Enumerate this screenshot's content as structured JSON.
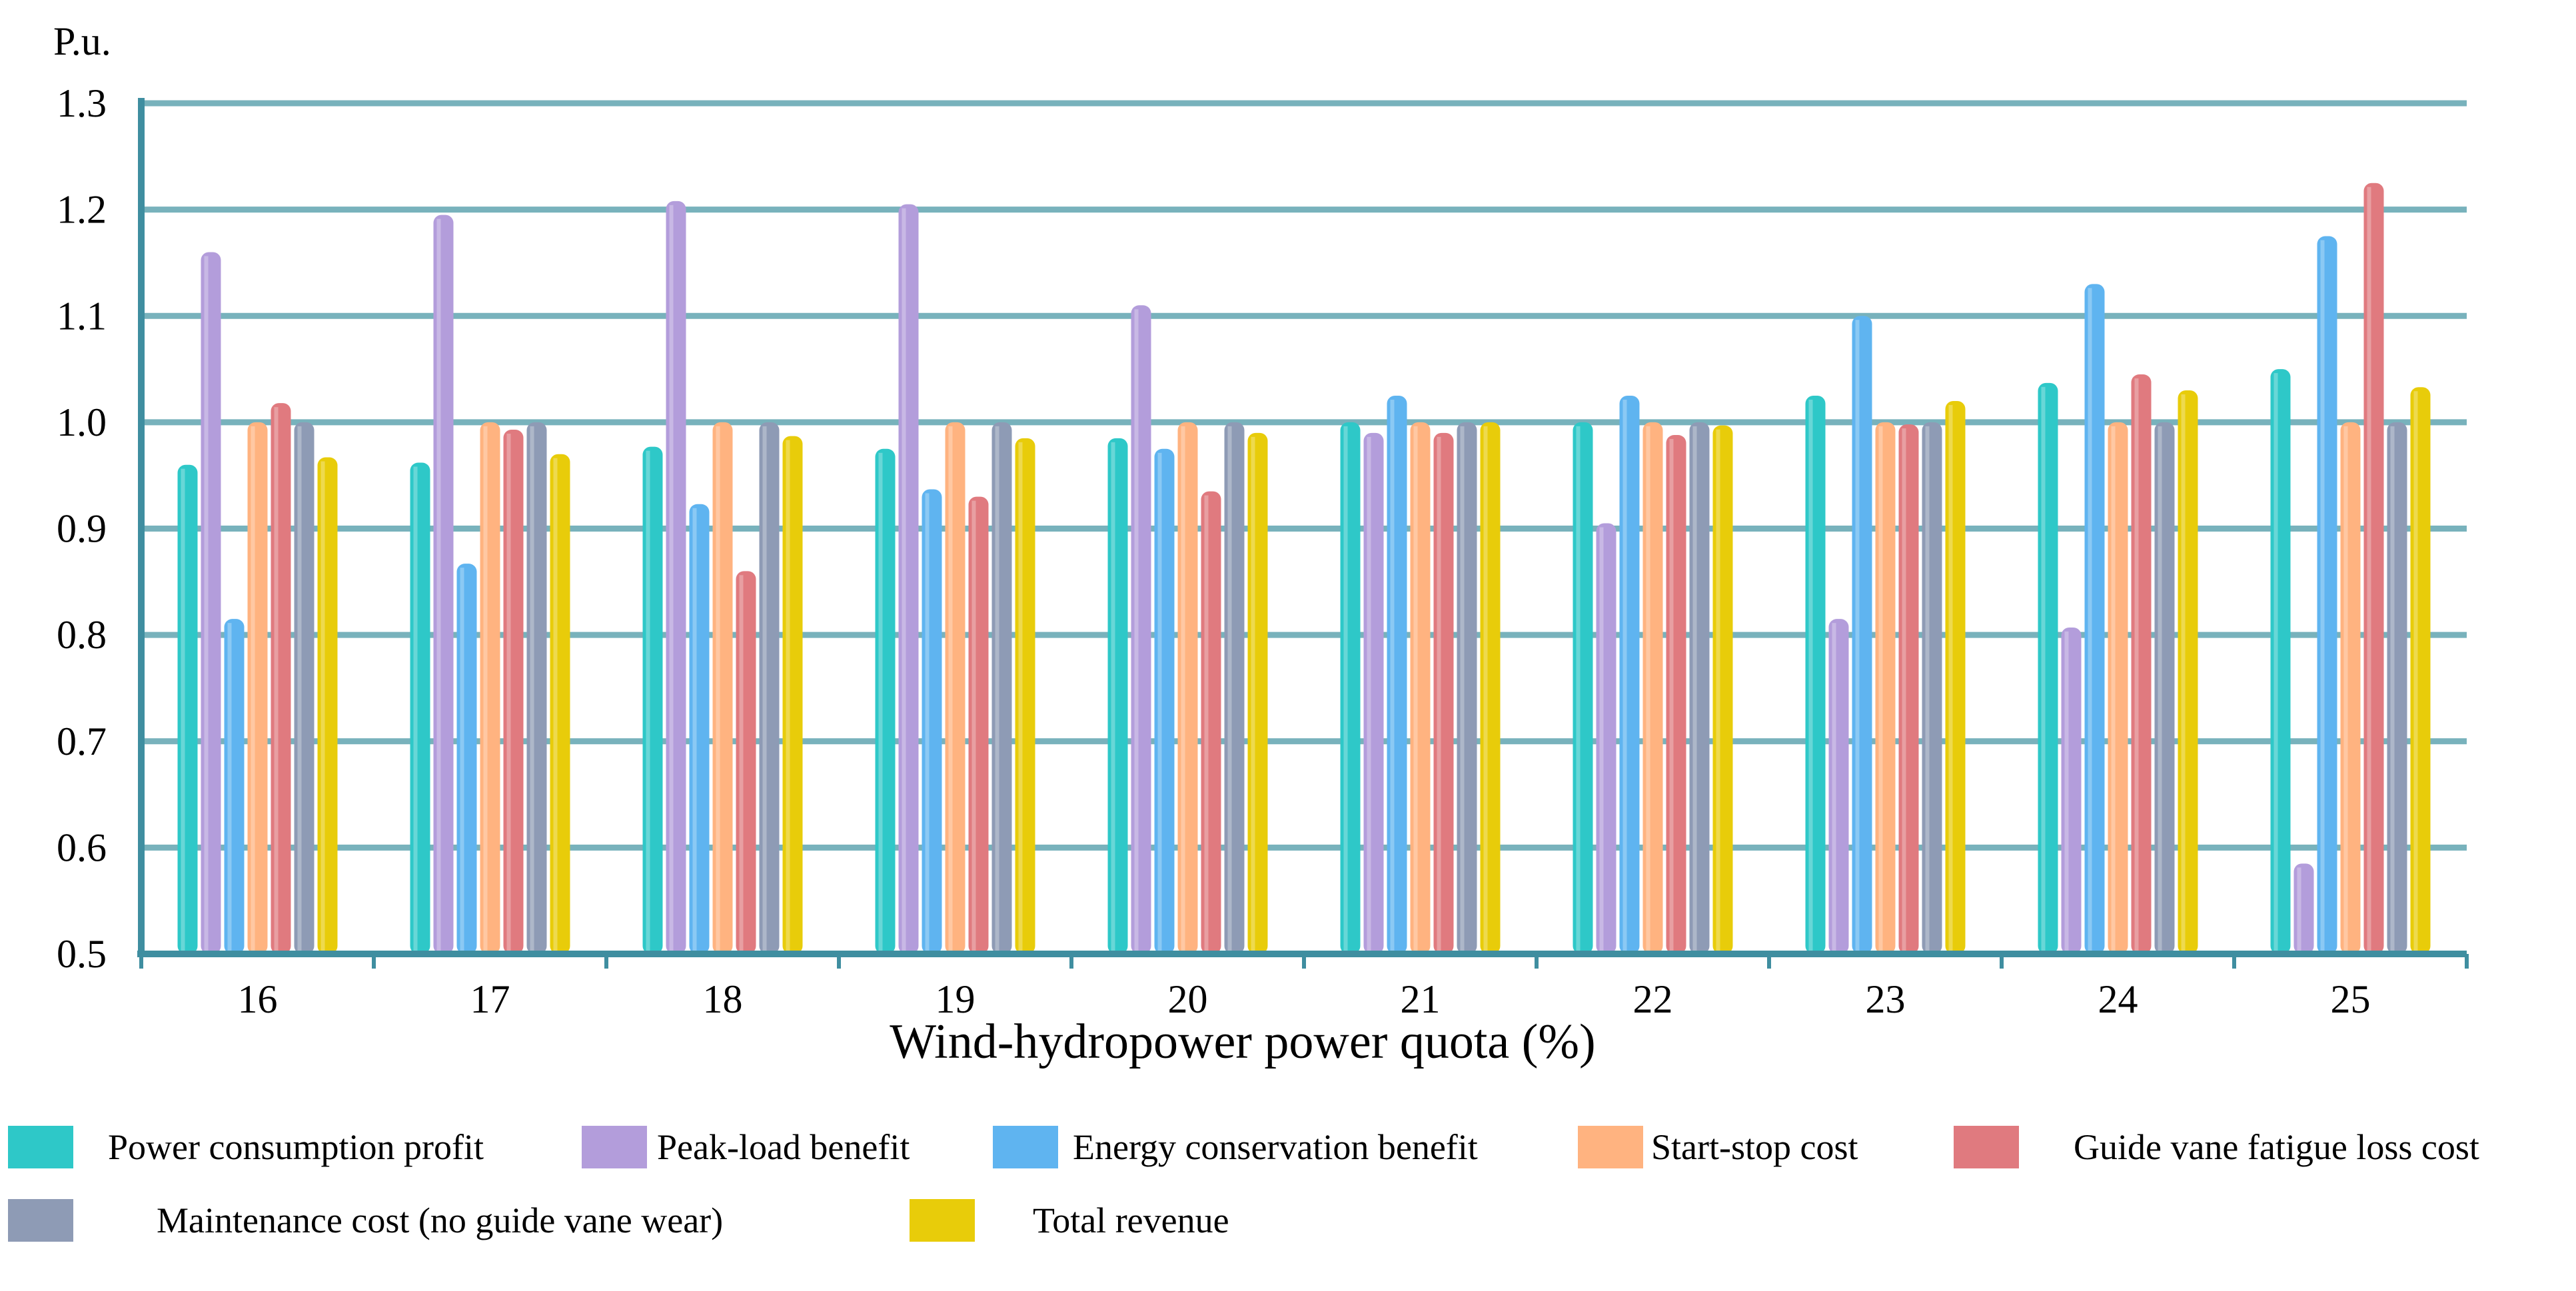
{
  "chart_data": {
    "type": "bar",
    "title": "",
    "xlabel": "Wind-hydropower power quota (%)",
    "ylabel": "P.u.",
    "ylim": [
      0.5,
      1.3
    ],
    "yticks": [
      "0.5",
      "0.6",
      "0.7",
      "0.8",
      "0.9",
      "1.0",
      "1.1",
      "1.2",
      "1.3"
    ],
    "grid": true,
    "legend_position": "bottom",
    "categories": [
      "16",
      "17",
      "18",
      "19",
      "20",
      "21",
      "22",
      "23",
      "24",
      "25"
    ],
    "series": [
      {
        "name": "Power consumption profit",
        "color": "#2ec8c8",
        "values": [
          0.96,
          0.962,
          0.977,
          0.975,
          0.985,
          1.0,
          1.0,
          1.025,
          1.037,
          1.05
        ]
      },
      {
        "name": "Peak-load benefit",
        "color": "#b39ddb",
        "values": [
          1.16,
          1.195,
          1.208,
          1.205,
          1.11,
          0.99,
          0.905,
          0.815,
          0.807,
          0.585
        ]
      },
      {
        "name": "Energy conservation benefit",
        "color": "#5fb4f0",
        "values": [
          0.815,
          0.867,
          0.923,
          0.937,
          0.975,
          1.025,
          1.025,
          1.1,
          1.13,
          1.175
        ]
      },
      {
        "name": "Start-stop cost",
        "color": "#ffb380",
        "values": [
          1.0,
          1.0,
          1.0,
          1.0,
          1.0,
          1.0,
          1.0,
          1.0,
          1.0,
          1.0
        ]
      },
      {
        "name": "Guide vane fatigue loss cost",
        "color": "#e07a7f",
        "values": [
          1.018,
          0.993,
          0.86,
          0.93,
          0.935,
          0.99,
          0.988,
          0.998,
          1.045,
          1.225
        ]
      },
      {
        "name": "Maintenance cost (no guide vane wear)",
        "color": "#8e9bb5",
        "values": [
          1.0,
          1.0,
          1.0,
          1.0,
          1.0,
          1.0,
          1.0,
          1.0,
          1.0,
          1.0
        ]
      },
      {
        "name": "Total revenue",
        "color": "#e8cc0a",
        "values": [
          0.967,
          0.97,
          0.987,
          0.985,
          0.99,
          1.0,
          0.997,
          1.02,
          1.03,
          1.033
        ]
      }
    ]
  },
  "colors": {
    "axis": "#3f8ea0",
    "grid": "#78b2bc"
  }
}
